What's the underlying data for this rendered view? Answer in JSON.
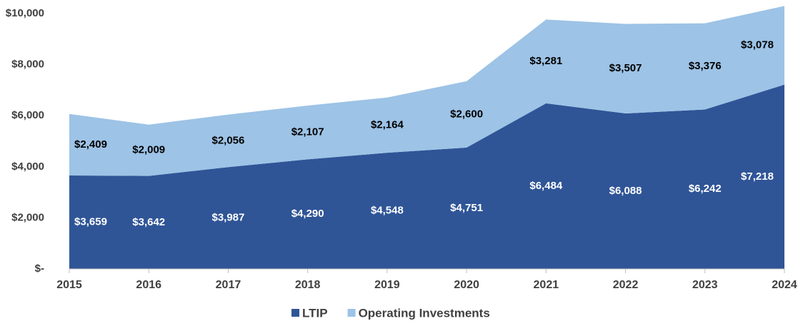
{
  "chart_data": {
    "type": "stacked_area",
    "x": [
      2015,
      2016,
      2017,
      2018,
      2019,
      2020,
      2021,
      2022,
      2023,
      2024
    ],
    "xlim": [
      2015,
      2024
    ],
    "xticks": [
      2015,
      2016,
      2017,
      2018,
      2019,
      2020,
      2021,
      2022,
      2023,
      2024
    ],
    "ylim": [
      0,
      10400
    ],
    "yticks": [
      {
        "value": 0,
        "label": "$-"
      },
      {
        "value": 2000,
        "label": "$2,000"
      },
      {
        "value": 4000,
        "label": "$4,000"
      },
      {
        "value": 6000,
        "label": "$6,000"
      },
      {
        "value": 8000,
        "label": "$8,000"
      },
      {
        "value": 10000,
        "label": "$10,000"
      }
    ],
    "legend": "bottom",
    "series": [
      {
        "name": "LTIP",
        "color": "#2f5597",
        "label_color": "#ffffff",
        "values": [
          3659,
          3642,
          3987,
          4290,
          4548,
          4751,
          6484,
          6088,
          6242,
          7218
        ],
        "value_labels": [
          "$3,659",
          "$3,642",
          "$3,987",
          "$4,290",
          "$4,548",
          "$4,751",
          "$6,484",
          "$6,088",
          "$6,242",
          "$7,218"
        ]
      },
      {
        "name": "Operating Investments",
        "color": "#9dc3e6",
        "label_color": "#000000",
        "values": [
          2409,
          2009,
          2056,
          2107,
          2164,
          2600,
          3281,
          3507,
          3376,
          3078
        ],
        "value_labels": [
          "$2,409",
          "$2,009",
          "$2,056",
          "$2,107",
          "$2,164",
          "$2,600",
          "$3,281",
          "$3,507",
          "$3,376",
          "$3,078"
        ]
      }
    ]
  }
}
